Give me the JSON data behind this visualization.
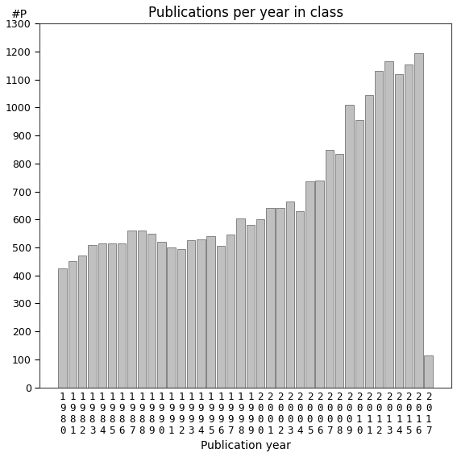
{
  "title": "Publications per year in class",
  "xlabel": "Publication year",
  "ylabel": "#P",
  "years": [
    "1980",
    "1981",
    "1982",
    "1983",
    "1984",
    "1985",
    "1986",
    "1987",
    "1988",
    "1989",
    "1990",
    "1991",
    "1992",
    "1993",
    "1994",
    "1995",
    "1996",
    "1997",
    "1998",
    "1999",
    "2000",
    "2001",
    "2002",
    "2003",
    "2004",
    "2005",
    "2006",
    "2007",
    "2008",
    "2009",
    "2010",
    "2011",
    "2012",
    "2013",
    "2014",
    "2015",
    "2016",
    "2017"
  ],
  "values": [
    425,
    450,
    470,
    510,
    515,
    515,
    515,
    560,
    560,
    550,
    520,
    500,
    495,
    525,
    530,
    540,
    505,
    545,
    605,
    580,
    600,
    640,
    640,
    665,
    630,
    735,
    740,
    850,
    835,
    1010,
    955,
    1045,
    1130,
    1165,
    1120,
    1155,
    1195,
    115
  ],
  "bar_color": "#c0c0c0",
  "bar_edgecolor": "#606060",
  "background_color": "#ffffff",
  "ylim": [
    0,
    1300
  ],
  "yticks": [
    0,
    100,
    200,
    300,
    400,
    500,
    600,
    700,
    800,
    900,
    1000,
    1100,
    1200,
    1300
  ],
  "title_fontsize": 12,
  "label_fontsize": 10,
  "axis_label_fontsize": 9,
  "tick_fontsize": 9
}
